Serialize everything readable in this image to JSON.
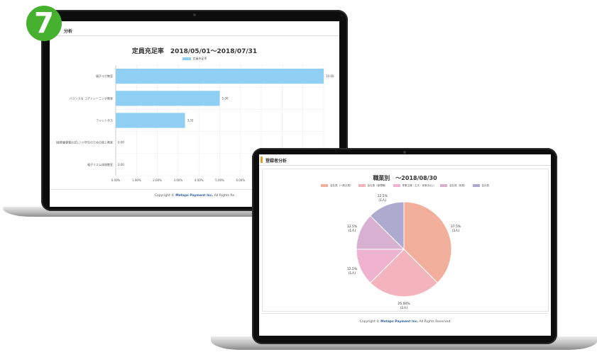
{
  "step_number": "7",
  "colors": {
    "badge": "#46b12e",
    "bar": "#8ecff3",
    "accent_mark": "#e0a12a",
    "brand": "#2a5d9c"
  },
  "laptop_back": {
    "section_title": "分析",
    "chart_data": {
      "type": "bar",
      "orientation": "horizontal",
      "title": "定員充足率　2018/05/01〜2018/07/31",
      "legend": [
        "定員充足率"
      ],
      "categories": [
        "親子ヨガ教室",
        "バランス＆ コアトレーニング教室",
        "フィットネス",
        "(総務審事業お試し) 小学生のための陸上教室",
        "親子リズム体操教室"
      ],
      "values": [
        10.0,
        5.0,
        3.33,
        0.0,
        0.0
      ],
      "value_labels": [
        "10.00",
        "5.00",
        "3.33",
        "0.00",
        "0.00"
      ],
      "x_ticks": [
        "0.00%",
        "1.00%",
        "2.00%",
        "3.00%",
        "4.00%",
        "5.00%",
        "6.00%"
      ],
      "xlim": [
        0,
        10
      ]
    },
    "footer_prefix": "Copyright ©",
    "footer_brand": "Metaps Payment Inc.",
    "footer_suffix": "All Rights Re"
  },
  "laptop_front": {
    "section_title": "登録者分析",
    "chart_data": {
      "type": "pie",
      "title": "職業別　〜2018/08/30",
      "series": [
        {
          "name": "会社員（一般社員）",
          "value": 37.5,
          "percent_label": "37.5%",
          "count_label": "(3人)",
          "color": "#f2b09c"
        },
        {
          "name": "会社員（管理職）",
          "value": 25.0,
          "percent_label": "25.00%",
          "count_label": "(2人)",
          "color": "#f4b4bd"
        },
        {
          "name": "専業主婦・主夫・家事手伝い",
          "value": 12.5,
          "percent_label": "12.5%",
          "count_label": "(1人)",
          "color": "#efb2cf"
        },
        {
          "name": "会社員（役員）",
          "value": 12.5,
          "percent_label": "12.5%",
          "count_label": "(1人)",
          "color": "#d7b0d2"
        },
        {
          "name": "会社員",
          "value": 12.5,
          "percent_label": "12.5%",
          "count_label": "(1人)",
          "color": "#adaad0"
        }
      ]
    },
    "footer_prefix": "Copyright ©",
    "footer_brand": "Metaps Payment Inc.",
    "footer_suffix": "All Rights Reserved"
  }
}
